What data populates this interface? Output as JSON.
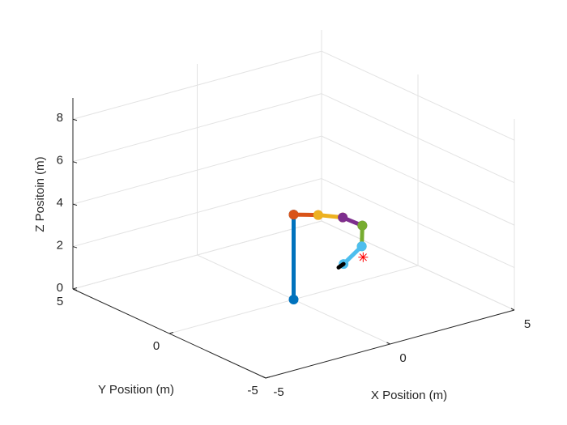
{
  "chart_data": {
    "type": "line3d",
    "xlabel": "X Position (m)",
    "ylabel": "Y Position (m)",
    "zlabel": "Z Positoin (m)",
    "xlim": [
      -5,
      5
    ],
    "xticks": [
      -5,
      0,
      5
    ],
    "ylim": [
      -5,
      5
    ],
    "yticks": [
      -5,
      0,
      5
    ],
    "zlim": [
      0,
      9
    ],
    "zticks": [
      0,
      2,
      4,
      6,
      8
    ],
    "grid": true,
    "series": [
      {
        "color": "#0072bd",
        "marker": "o",
        "x": [
          0,
          0
        ],
        "y": [
          0,
          0
        ],
        "z": [
          0,
          4
        ]
      },
      {
        "color": "#d95319",
        "marker": "o",
        "x": [
          0,
          0.6
        ],
        "y": [
          0,
          -0.5
        ],
        "z": [
          4,
          4
        ]
      },
      {
        "color": "#edb120",
        "marker": "o",
        "x": [
          0.6,
          1.2
        ],
        "y": [
          -0.5,
          -1.0
        ],
        "z": [
          4,
          3.9
        ]
      },
      {
        "color": "#7e2f8e",
        "marker": "o",
        "x": [
          1.2,
          1.6
        ],
        "y": [
          -1.0,
          -1.5
        ],
        "z": [
          3.9,
          3.6
        ]
      },
      {
        "color": "#77ac30",
        "marker": "o",
        "x": [
          1.6,
          1.5
        ],
        "y": [
          -1.5,
          -1.6
        ],
        "z": [
          3.6,
          2.7
        ]
      },
      {
        "color": "#4dbeee",
        "marker": "o",
        "x": [
          1.5,
          1.0
        ],
        "y": [
          -1.6,
          -1.3
        ],
        "z": [
          2.7,
          1.9
        ]
      },
      {
        "color": "#000000",
        "marker": "none",
        "x": [
          1.0,
          0.8
        ],
        "y": [
          -1.3,
          -1.3
        ],
        "z": [
          1.9,
          1.8
        ]
      }
    ],
    "target": {
      "color": "#ff0000",
      "marker": "*",
      "x": 1.4,
      "y": -1.8,
      "z": 2.3
    }
  }
}
